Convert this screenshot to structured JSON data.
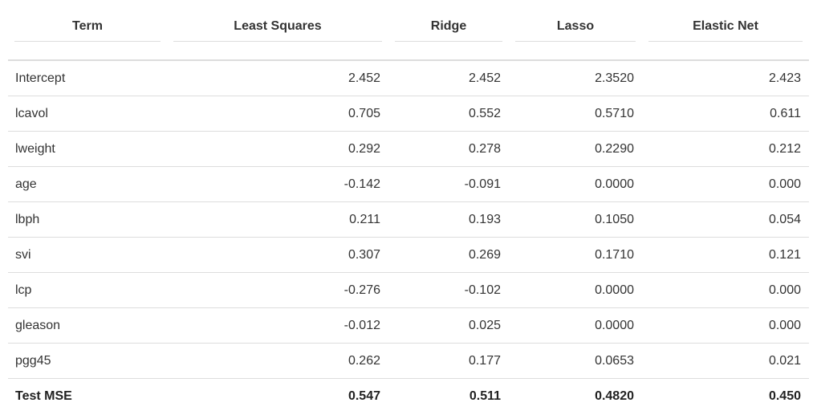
{
  "table": {
    "headers": [
      "Term",
      "Least Squares",
      "Ridge",
      "Lasso",
      "Elastic Net"
    ],
    "rows": [
      [
        "Intercept",
        "2.452",
        "2.452",
        "2.3520",
        "2.423"
      ],
      [
        "lcavol",
        "0.705",
        "0.552",
        "0.5710",
        "0.611"
      ],
      [
        "lweight",
        "0.292",
        "0.278",
        "0.2290",
        "0.212"
      ],
      [
        "age",
        "-0.142",
        "-0.091",
        "0.0000",
        "0.000"
      ],
      [
        "lbph",
        "0.211",
        "0.193",
        "0.1050",
        "0.054"
      ],
      [
        "svi",
        "0.307",
        "0.269",
        "0.1710",
        "0.121"
      ],
      [
        "lcp",
        "-0.276",
        "-0.102",
        "0.0000",
        "0.000"
      ],
      [
        "gleason",
        "-0.012",
        "0.025",
        "0.0000",
        "0.000"
      ],
      [
        "pgg45",
        "0.262",
        "0.177",
        "0.0653",
        "0.021"
      ],
      [
        "Test MSE",
        "0.547",
        "0.511",
        "0.4820",
        "0.450"
      ]
    ]
  }
}
